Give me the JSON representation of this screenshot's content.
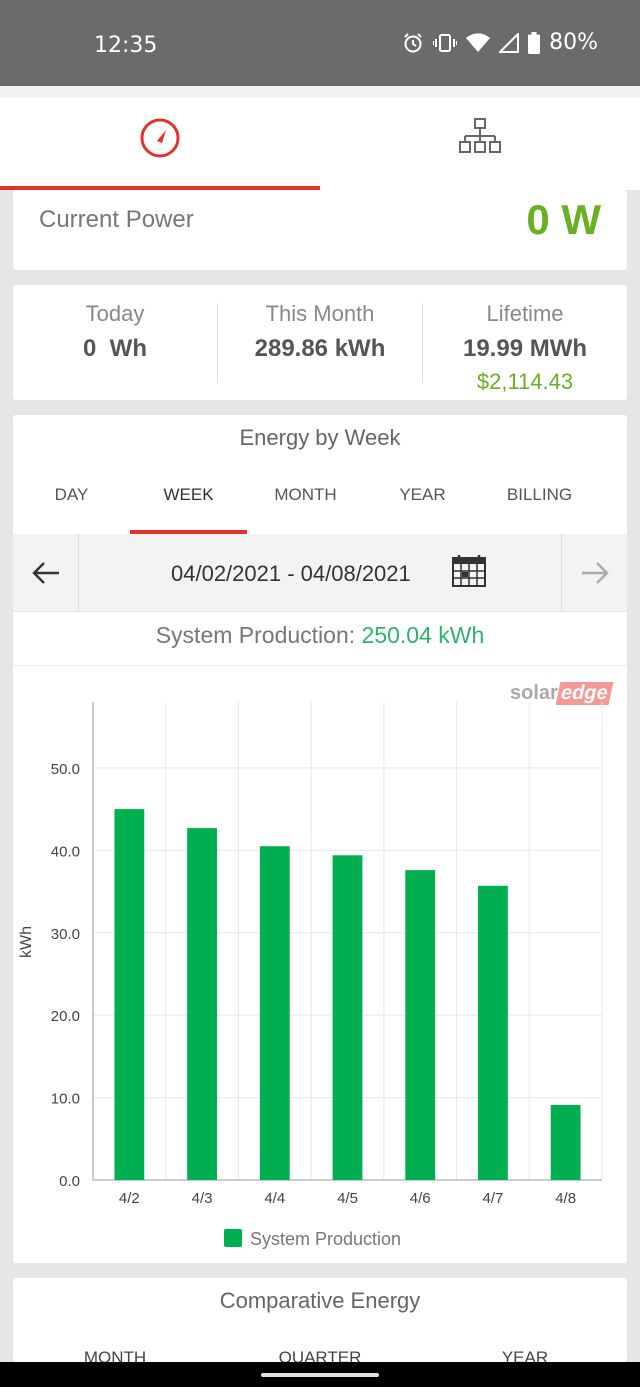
{
  "status_bar": {
    "time": "12:35",
    "battery": "80%"
  },
  "top_tabs": [
    {
      "icon": "speedometer-icon"
    },
    {
      "icon": "site-layout-icon"
    }
  ],
  "current_power": {
    "label": "Current Power",
    "value": "0 W"
  },
  "stats": {
    "today": {
      "label": "Today",
      "value": "0  Wh"
    },
    "month": {
      "label": "This Month",
      "value": "289.86 kWh"
    },
    "lifetime": {
      "label": "Lifetime",
      "value": "19.99 MWh",
      "money": "$2,114.43"
    }
  },
  "energy": {
    "title": "Energy by Week",
    "tabs": [
      "DAY",
      "WEEK",
      "MONTH",
      "YEAR",
      "BILLING"
    ],
    "active_tab": "WEEK",
    "date_range": "04/02/2021 - 04/08/2021",
    "system_production_label": "System Production: ",
    "system_production_value": "250.04 kWh"
  },
  "logo": {
    "part1": "solar",
    "part2": "edge"
  },
  "colors": {
    "accent": "#e2332b",
    "green": "#6ab023",
    "bar": "#00b050"
  },
  "chart_data": {
    "type": "bar",
    "categories": [
      "4/2",
      "4/3",
      "4/4",
      "4/5",
      "4/6",
      "4/7",
      "4/8"
    ],
    "series": [
      {
        "name": "System Production",
        "values": [
          45.0,
          42.7,
          40.5,
          39.4,
          37.6,
          35.7,
          9.1
        ]
      }
    ],
    "ylabel": "kWh",
    "ylim": [
      0,
      58
    ],
    "yticks": [
      "0.0",
      "10.0",
      "20.0",
      "30.0",
      "40.0",
      "50.0"
    ],
    "grid": true,
    "legend": "bottom"
  },
  "comparative": {
    "title": "Comparative Energy",
    "tabs": [
      "MONTH",
      "QUARTER",
      "YEAR"
    ]
  }
}
